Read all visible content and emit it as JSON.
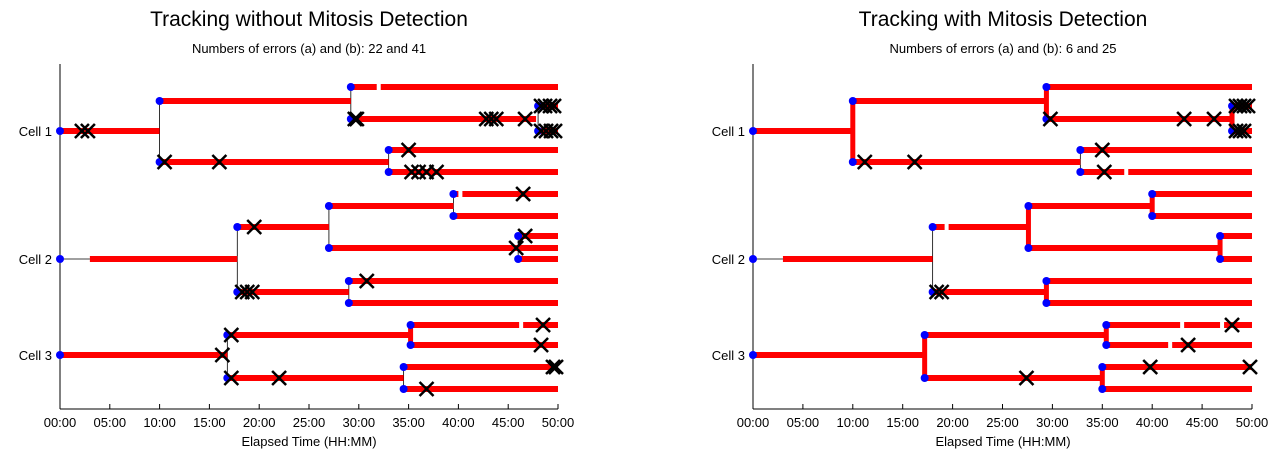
{
  "chart_data": [
    {
      "type": "lineage-tree",
      "title": "Tracking without Mitosis Detection",
      "subtitle": "Numbers of errors (a) and (b): 22 and 41",
      "xlabel": "Elapsed Time (HH:MM)",
      "xticks": [
        "00:00",
        "05:00",
        "10:00",
        "15:00",
        "20:00",
        "25:00",
        "30:00",
        "35:00",
        "40:00",
        "45:00",
        "50:00"
      ],
      "xlim": [
        0,
        50
      ],
      "cell_labels": [
        {
          "label": "Cell 1",
          "y": 131
        },
        {
          "label": "Cell 2",
          "y": 259
        },
        {
          "label": "Cell 3",
          "y": 355
        }
      ],
      "tracks": [
        [
          0,
          131,
          10,
          131
        ],
        [
          10,
          101,
          29.2,
          101
        ],
        [
          10,
          162,
          33,
          162
        ],
        [
          29.2,
          87,
          50,
          87
        ],
        [
          29.2,
          119,
          47.8,
          119
        ],
        [
          48,
          106,
          50,
          106
        ],
        [
          48,
          131,
          50,
          131
        ],
        [
          33,
          150,
          50,
          150
        ],
        [
          33,
          172,
          50,
          172
        ],
        [
          3,
          259,
          17.8,
          259
        ],
        [
          17.8,
          227,
          27,
          227
        ],
        [
          17.8,
          292,
          29,
          292
        ],
        [
          27,
          206,
          39.5,
          206
        ],
        [
          27,
          248,
          50,
          248
        ],
        [
          39.5,
          194,
          50,
          194
        ],
        [
          39.5,
          216,
          50,
          216
        ],
        [
          46,
          236,
          50,
          236
        ],
        [
          46,
          259,
          50,
          259
        ],
        [
          29,
          281,
          50,
          281
        ],
        [
          29,
          303,
          50,
          303
        ],
        [
          0,
          355,
          16.8,
          355
        ],
        [
          16.8,
          335,
          35.2,
          335
        ],
        [
          16.8,
          378,
          34.5,
          378
        ],
        [
          35.2,
          325,
          50,
          325
        ],
        [
          35.2,
          345,
          50,
          345
        ],
        [
          34.5,
          367,
          50,
          367
        ],
        [
          34.5,
          389,
          50,
          389
        ]
      ],
      "links": [
        [
          10,
          101,
          10,
          162
        ],
        [
          29.2,
          87,
          29.2,
          119
        ],
        [
          48,
          106,
          48,
          131
        ],
        [
          33,
          150,
          33,
          172
        ],
        [
          17.8,
          227,
          17.8,
          292
        ],
        [
          27,
          206,
          27,
          248
        ],
        [
          39.5,
          194,
          39.5,
          216
        ],
        [
          46,
          236,
          46,
          259
        ],
        [
          29,
          281,
          29,
          303
        ],
        [
          16.8,
          335,
          16.8,
          378
        ],
        [
          35.2,
          325,
          35.2,
          345
        ],
        [
          34.5,
          367,
          34.5,
          389
        ]
      ],
      "division_bars": [
        [
          35.2,
          325,
          35.2,
          345
        ]
      ],
      "start_points": [
        [
          0,
          131
        ],
        [
          10,
          101
        ],
        [
          10,
          162
        ],
        [
          29.2,
          87
        ],
        [
          29.2,
          119
        ],
        [
          48,
          106
        ],
        [
          48,
          131
        ],
        [
          33,
          150
        ],
        [
          33,
          172
        ],
        [
          0,
          259
        ],
        [
          17.8,
          227
        ],
        [
          17.8,
          292
        ],
        [
          27,
          206
        ],
        [
          27,
          248
        ],
        [
          39.5,
          194
        ],
        [
          39.5,
          216
        ],
        [
          46,
          236
        ],
        [
          46,
          259
        ],
        [
          29,
          281
        ],
        [
          29,
          303
        ],
        [
          0,
          355
        ],
        [
          16.8,
          335
        ],
        [
          16.8,
          378
        ],
        [
          35.2,
          325
        ],
        [
          35.2,
          345
        ],
        [
          34.5,
          367
        ],
        [
          34.5,
          389
        ]
      ],
      "errors": [
        [
          2.2,
          131
        ],
        [
          2.8,
          131
        ],
        [
          10.5,
          162
        ],
        [
          16,
          162
        ],
        [
          29.6,
          119
        ],
        [
          29.8,
          119
        ],
        [
          42.8,
          119
        ],
        [
          43.3,
          119
        ],
        [
          43.8,
          119
        ],
        [
          46.7,
          119
        ],
        [
          48.3,
          106
        ],
        [
          48.7,
          106
        ],
        [
          49.2,
          106
        ],
        [
          49.6,
          106
        ],
        [
          48.3,
          131
        ],
        [
          48.8,
          131
        ],
        [
          49.3,
          131
        ],
        [
          49.7,
          131
        ],
        [
          35,
          150
        ],
        [
          35.3,
          172
        ],
        [
          36,
          172
        ],
        [
          36.8,
          172
        ],
        [
          37.8,
          172
        ],
        [
          46.5,
          194
        ],
        [
          19.5,
          227
        ],
        [
          46.7,
          236
        ],
        [
          45.8,
          248
        ],
        [
          18.3,
          292
        ],
        [
          18.8,
          292
        ],
        [
          19.3,
          292
        ],
        [
          30.8,
          281
        ],
        [
          17.2,
          335
        ],
        [
          48.5,
          325
        ],
        [
          48.3,
          345
        ],
        [
          16.3,
          355
        ],
        [
          17.2,
          378
        ],
        [
          22,
          378
        ],
        [
          36.8,
          389
        ],
        [
          49.5,
          367
        ],
        [
          49.8,
          367
        ]
      ],
      "gaps": [
        [
          32,
          87
        ],
        [
          32,
          172
        ],
        [
          40.2,
          194
        ],
        [
          46.3,
          325
        ]
      ]
    },
    {
      "type": "lineage-tree",
      "title": "Tracking with Mitosis Detection",
      "subtitle": "Numbers of errors (a) and (b): 6 and 25",
      "xlabel": "Elapsed Time (HH:MM)",
      "xticks": [
        "00:00",
        "05:00",
        "10:00",
        "15:00",
        "20:00",
        "25:00",
        "30:00",
        "35:00",
        "40:00",
        "45:00",
        "50:00"
      ],
      "xlim": [
        0,
        50
      ],
      "cell_labels": [
        {
          "label": "Cell 1",
          "y": 131
        },
        {
          "label": "Cell 2",
          "y": 259
        },
        {
          "label": "Cell 3",
          "y": 355
        }
      ],
      "tracks": [
        [
          0,
          131,
          10,
          131
        ],
        [
          10,
          101,
          29.4,
          101
        ],
        [
          10,
          162,
          32.8,
          162
        ],
        [
          29.4,
          87,
          50,
          87
        ],
        [
          29.4,
          119,
          48,
          119
        ],
        [
          48,
          106,
          50,
          106
        ],
        [
          48,
          131,
          50,
          131
        ],
        [
          32.8,
          150,
          50,
          150
        ],
        [
          32.8,
          172,
          50,
          172
        ],
        [
          3,
          259,
          18,
          259
        ],
        [
          18,
          227,
          27.6,
          227
        ],
        [
          18,
          292,
          29.4,
          292
        ],
        [
          27.6,
          206,
          40,
          206
        ],
        [
          27.6,
          248,
          46.8,
          248
        ],
        [
          40,
          194,
          50,
          194
        ],
        [
          40,
          216,
          50,
          216
        ],
        [
          46.8,
          236,
          50,
          236
        ],
        [
          46.8,
          259,
          50,
          259
        ],
        [
          29.4,
          281,
          50,
          281
        ],
        [
          29.4,
          303,
          50,
          303
        ],
        [
          0,
          355,
          17.2,
          355
        ],
        [
          17.2,
          335,
          35.4,
          335
        ],
        [
          17.2,
          378,
          35,
          378
        ],
        [
          35.4,
          325,
          50,
          325
        ],
        [
          35.4,
          345,
          50,
          345
        ],
        [
          35,
          367,
          50,
          367
        ],
        [
          35,
          389,
          50,
          389
        ]
      ],
      "links": [
        [
          10,
          101,
          10,
          162
        ],
        [
          29.4,
          87,
          29.4,
          119
        ],
        [
          48,
          106,
          48,
          131
        ],
        [
          32.8,
          150,
          32.8,
          172
        ],
        [
          18,
          227,
          18,
          292
        ],
        [
          27.6,
          206,
          27.6,
          248
        ],
        [
          40,
          194,
          40,
          216
        ],
        [
          46.8,
          236,
          46.8,
          259
        ],
        [
          29.4,
          281,
          29.4,
          303
        ],
        [
          17.2,
          335,
          17.2,
          378
        ],
        [
          35.4,
          325,
          35.4,
          345
        ],
        [
          35,
          367,
          35,
          389
        ]
      ],
      "division_bars": [
        [
          10,
          101,
          10,
          162
        ],
        [
          29.4,
          87,
          29.4,
          119
        ],
        [
          48,
          106,
          48,
          131
        ],
        [
          27.6,
          206,
          27.6,
          248
        ],
        [
          40,
          194,
          40,
          216
        ],
        [
          46.8,
          236,
          46.8,
          259
        ],
        [
          29.4,
          281,
          29.4,
          303
        ],
        [
          17.2,
          335,
          17.2,
          378
        ],
        [
          35.4,
          325,
          35.4,
          345
        ],
        [
          35,
          367,
          35,
          389
        ]
      ],
      "start_points": [
        [
          0,
          131
        ],
        [
          10,
          101
        ],
        [
          10,
          162
        ],
        [
          29.4,
          87
        ],
        [
          29.4,
          119
        ],
        [
          48,
          106
        ],
        [
          48,
          131
        ],
        [
          32.8,
          150
        ],
        [
          32.8,
          172
        ],
        [
          0,
          259
        ],
        [
          18,
          227
        ],
        [
          18,
          292
        ],
        [
          27.6,
          206
        ],
        [
          27.6,
          248
        ],
        [
          40,
          194
        ],
        [
          40,
          216
        ],
        [
          46.8,
          236
        ],
        [
          46.8,
          259
        ],
        [
          29.4,
          281
        ],
        [
          29.4,
          303
        ],
        [
          0,
          355
        ],
        [
          17.2,
          335
        ],
        [
          17.2,
          378
        ],
        [
          35.4,
          325
        ],
        [
          35.4,
          345
        ],
        [
          35,
          367
        ],
        [
          35,
          389
        ]
      ],
      "errors": [
        [
          11.2,
          162
        ],
        [
          16.2,
          162
        ],
        [
          29.8,
          119
        ],
        [
          43.2,
          119
        ],
        [
          46.2,
          119
        ],
        [
          48.4,
          106
        ],
        [
          48.8,
          106
        ],
        [
          49.2,
          106
        ],
        [
          49.6,
          106
        ],
        [
          48.4,
          131
        ],
        [
          48.8,
          131
        ],
        [
          49.2,
          131
        ],
        [
          35,
          150
        ],
        [
          35.2,
          172
        ],
        [
          18.4,
          292
        ],
        [
          18.9,
          292
        ],
        [
          48,
          325
        ],
        [
          43.6,
          345
        ],
        [
          27.4,
          378
        ],
        [
          39.8,
          367
        ],
        [
          49.8,
          367
        ]
      ],
      "gaps": [
        [
          37.4,
          172
        ],
        [
          19.4,
          227
        ],
        [
          43,
          325
        ],
        [
          47,
          325
        ],
        [
          41.8,
          345
        ]
      ]
    }
  ]
}
